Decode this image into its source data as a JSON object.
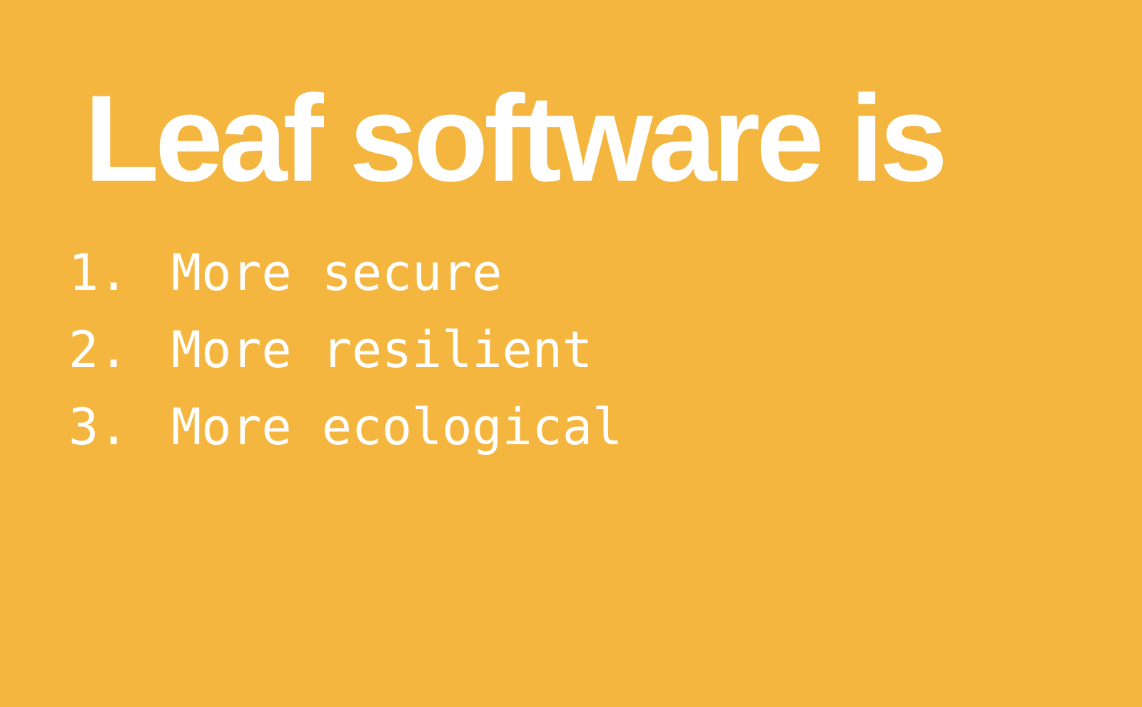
{
  "slide": {
    "background_color": "#F4B63F",
    "text_color": "#FFFFFF",
    "title": "Leaf software is",
    "items": [
      {
        "number": "1.",
        "text": "More secure"
      },
      {
        "number": "2.",
        "text": "More resilient"
      },
      {
        "number": "3.",
        "text": "More ecological"
      }
    ]
  }
}
